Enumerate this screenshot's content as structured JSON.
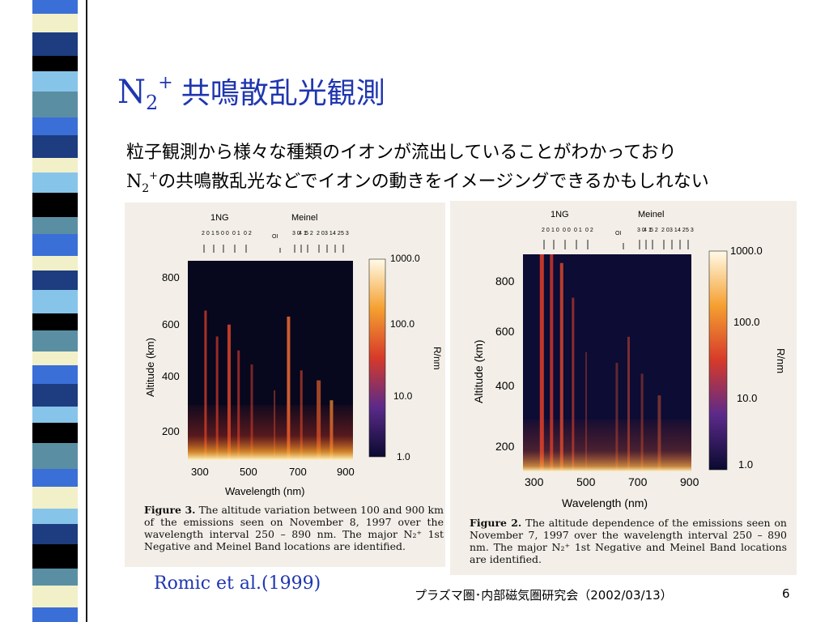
{
  "slide": {
    "title_n": "N",
    "title_sub": "2",
    "title_sup": "+",
    "title_text": "共鳴散乱光観測",
    "line1": "粒子観測から様々な種類のイオンが流出していることがわかっており",
    "line2_n": "N",
    "line2_sub": "2",
    "line2_sup": "+",
    "line2_rest": "の共鳴散乱光などでイオンの動きをイメージングできるかもしれない",
    "citation": "Romic et al.(1999)",
    "footer": "プラズマ圏･内部磁気圏研究会（2002/03/13）",
    "page_number": "6"
  },
  "figure_left": {
    "band_label_1": "1NG",
    "band_label_2": "Meinel",
    "band_digits_1ng": [
      "2 0",
      "1 5",
      "0 0",
      "0 1",
      "0 2"
    ],
    "band_oi": "OI",
    "band_digits_meinel_a": [
      "3 0",
      "4 1",
      "5 2"
    ],
    "band_digits_meinel_b": [
      "2 0",
      "3 1",
      "4 2",
      "5 3"
    ],
    "y_ticks": [
      "800",
      "600",
      "400",
      "200"
    ],
    "y_label": "Altitude (km)",
    "x_ticks": [
      "300",
      "500",
      "700",
      "900"
    ],
    "x_label": "Wavelength  (nm)",
    "colorbar_ticks": [
      "1000.0",
      "100.0",
      "10.0",
      "1.0"
    ],
    "colorbar_label": "R/nm",
    "caption_bold": "Figure 3.",
    "caption_text": "The altitude variation between 100 and 900 km of the emissions seen on November 8, 1997 over the wavelength interval 250 – 890 nm. The major N₂⁺ 1st Negative and Meinel Band locations are identified."
  },
  "figure_right": {
    "band_label_1": "1NG",
    "band_label_2": "Meinel",
    "band_digits_1ng": [
      "2 0",
      "1 0",
      "0 0",
      "0 1",
      "0 2"
    ],
    "band_oi": "OI",
    "band_digits_meinel_a": [
      "3 0",
      "4 1",
      "5 2"
    ],
    "band_digits_meinel_b": [
      "2 0",
      "3 1",
      "4 2",
      "5 3"
    ],
    "y_ticks": [
      "800",
      "600",
      "400",
      "200"
    ],
    "y_label": "Altitude (km)",
    "x_ticks": [
      "300",
      "500",
      "700",
      "900"
    ],
    "x_label": "Wavelength  (nm)",
    "colorbar_ticks": [
      "1000.0",
      "100.0",
      "10.0",
      "1.0"
    ],
    "colorbar_label": "R/nm",
    "caption_bold": "Figure 2.",
    "caption_text": "The altitude dependence of the emissions seen on November 7, 1997 over the wavelength interval 250 – 890 nm. The major N₂⁺ 1st Negative and Meinel Band locations are identified."
  },
  "colors": {
    "title_blue": "#1f36b0",
    "deco": [
      "#3b6fd8",
      "#f2f0c8",
      "#1d3d80",
      "#000000",
      "#87c4ea",
      "#5a8fa3"
    ]
  }
}
